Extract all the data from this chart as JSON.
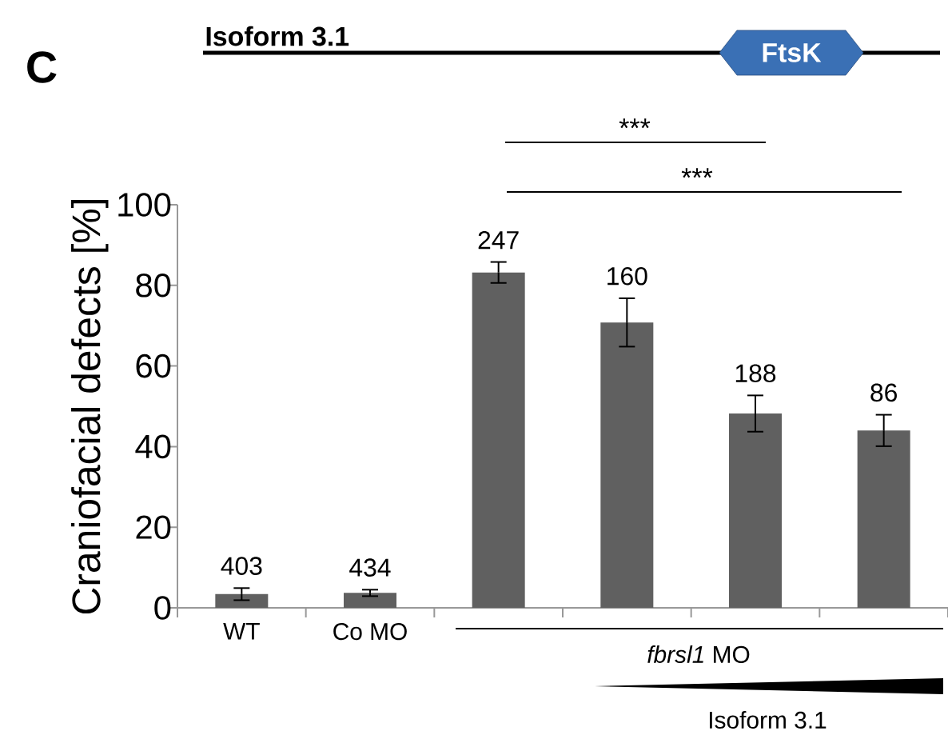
{
  "chart_data": {
    "type": "bar",
    "categories": [
      "WT",
      "Co MO",
      null,
      null,
      null,
      null
    ],
    "values": [
      3.4,
      3.7,
      83.2,
      70.8,
      48.2,
      44.0
    ],
    "errors": [
      1.5,
      0.8,
      2.6,
      6.0,
      4.5,
      3.9
    ],
    "color": "#606060",
    "ylabel": "Craniofacial defects [%]",
    "ylim": [
      0,
      100
    ],
    "yticks": [
      0,
      20,
      40,
      60,
      80,
      100
    ],
    "annotations": [
      "C",
      "Isoform 3.1",
      "FtsK",
      "***",
      "***",
      "*fbrsl1* MO",
      "Isoform 3.1",
      "403",
      "434",
      "247",
      "160",
      "188",
      "86"
    ]
  }
}
